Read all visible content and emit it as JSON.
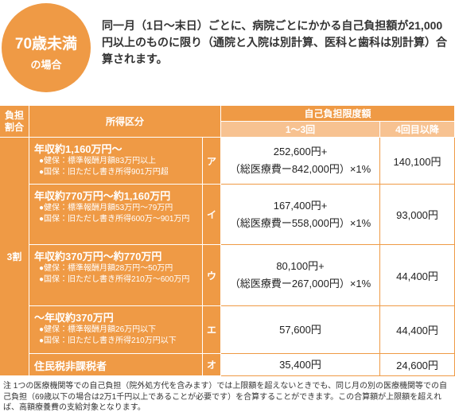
{
  "badge": {
    "line1": "70歳未満",
    "line2": "の場合"
  },
  "intro": "同一月（1日〜末日）ごとに、病院ごとにかかる自己負担額が21,000円以上のものに限り（通院と入院は別計算、医科と歯科は別計算）合算されます。",
  "table": {
    "headers": {
      "rate": "負担割合",
      "income": "所得区分",
      "limit": "自己負担限度額",
      "first": "1〜3回",
      "fourth": "4回目以降"
    },
    "rate": "3割",
    "rows": [
      {
        "title": "年収約1,160万円〜",
        "bullets": [
          "●健保：標準報酬月額83万円以上",
          "●国保：旧ただし書き所得901万円超"
        ],
        "kana": "ア",
        "limit": [
          "252,600円+",
          "（総医療費ー842,000円）×1%"
        ],
        "fourth": "140,100円"
      },
      {
        "title": "年収約770万円〜約1,160万円",
        "bullets": [
          "●健保：標準報酬月額53万円〜79万円",
          "●国保：旧ただし書き所得600万〜901万円"
        ],
        "kana": "イ",
        "limit": [
          "167,400円+",
          "（総医療費ー558,000円）×1%"
        ],
        "fourth": "93,000円"
      },
      {
        "title": "年収約370万円〜約770万円",
        "bullets": [
          "●健保：標準報酬月額28万円〜50万円",
          "●国保：旧ただし書き所得210万〜600万円"
        ],
        "kana": "ウ",
        "limit": [
          "80,100円+",
          "（総医療費ー267,000円）×1%"
        ],
        "fourth": "44,400円"
      },
      {
        "title": "〜年収約370万円",
        "bullets": [
          "●健保：標準報酬月額26万円以下",
          "●国保：旧ただし書き所得210万円以下"
        ],
        "kana": "エ",
        "limit": [
          "57,600円"
        ],
        "fourth": "44,400円"
      },
      {
        "title": "住民税非課税者",
        "bullets": [],
        "kana": "オ",
        "limit": [
          "35,400円"
        ],
        "fourth": "24,600円"
      }
    ]
  },
  "note": "注 1つの医療機関等での自己負担（院外処方代を含みます）では上限額を超えないときでも、同じ月の別の医療機関等での自己負担（69歳以下の場合は2万1千円以上であることが必要です）を合算することができます。この合算額が上限額を超えれば、高額療養費の支給対象となります。"
}
